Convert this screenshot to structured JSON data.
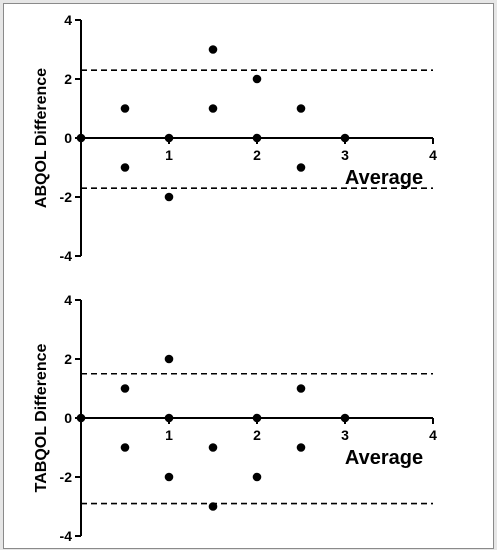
{
  "chart_data": [
    {
      "type": "scatter",
      "title": "",
      "xlabel": "Average",
      "ylabel": "ABQOL Difference",
      "xlim": [
        0,
        4
      ],
      "ylim": [
        -4,
        4
      ],
      "xticks": [
        1,
        2,
        3,
        4
      ],
      "yticks": [
        -4,
        -2,
        0,
        2,
        4
      ],
      "limits_of_agreement": [
        2.3,
        -1.7
      ],
      "points": [
        {
          "x": 0,
          "y": 0
        },
        {
          "x": 0.5,
          "y": 1
        },
        {
          "x": 0.5,
          "y": -1
        },
        {
          "x": 1,
          "y": 0
        },
        {
          "x": 1,
          "y": -2
        },
        {
          "x": 1.5,
          "y": 3
        },
        {
          "x": 1.5,
          "y": 1
        },
        {
          "x": 2,
          "y": 2
        },
        {
          "x": 2,
          "y": 0
        },
        {
          "x": 2.5,
          "y": 1
        },
        {
          "x": 2.5,
          "y": -1
        },
        {
          "x": 3,
          "y": 0
        }
      ]
    },
    {
      "type": "scatter",
      "title": "",
      "xlabel": "Average",
      "ylabel": "TABQOL Difference",
      "xlim": [
        0,
        4
      ],
      "ylim": [
        -4,
        4
      ],
      "xticks": [
        1,
        2,
        3,
        4
      ],
      "yticks": [
        -4,
        -2,
        0,
        2,
        4
      ],
      "limits_of_agreement": [
        1.5,
        -2.9
      ],
      "points": [
        {
          "x": 0,
          "y": 0
        },
        {
          "x": 0.5,
          "y": 1
        },
        {
          "x": 0.5,
          "y": -1
        },
        {
          "x": 1,
          "y": 2
        },
        {
          "x": 1,
          "y": 0
        },
        {
          "x": 1,
          "y": -2
        },
        {
          "x": 1.5,
          "y": -1
        },
        {
          "x": 1.5,
          "y": -3
        },
        {
          "x": 2,
          "y": 0
        },
        {
          "x": 2,
          "y": -2
        },
        {
          "x": 2.5,
          "y": 1
        },
        {
          "x": 2.5,
          "y": -1
        },
        {
          "x": 3,
          "y": 0
        }
      ]
    }
  ]
}
